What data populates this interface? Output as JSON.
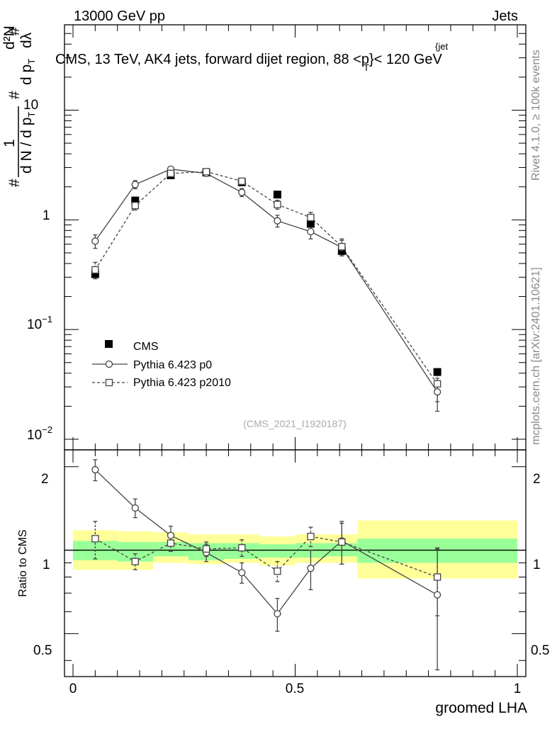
{
  "header": {
    "energy_label": "13000 GeV pp",
    "category_label": "Jets"
  },
  "title": {
    "main": "CMS, 13 TeV, AK4 jets, forward dijet region, 88 <p",
    "sup": "{jet",
    "sub": "T",
    "tail": "}< 120 GeV"
  },
  "side_labels": {
    "rivet": "Rivet 4.1.0, ≥ 100k events",
    "source": "mcplots.cern.ch [arXiv:2401.10621]"
  },
  "watermark": "(CMS_2021_I1920187)",
  "axes": {
    "xlabel": "groomed LHA",
    "ratio_ylabel": "Ratio to CMS",
    "main_ylabel": {
      "hash1": "#",
      "one": "1",
      "dN": "d N / d p",
      "T1": "T",
      "hash2": "#",
      "dpT": "d p",
      "T2": "T",
      "d2N": "d²N",
      "dlambda": "dλ",
      "hash3": "#"
    },
    "main_ticks": [
      {
        "value": 10,
        "label": "10"
      },
      {
        "value": 1,
        "label": "1"
      },
      {
        "value": 0.1,
        "label": "10"
      },
      {
        "value": 0.01,
        "label": "10"
      }
    ],
    "main_tick_exps": {
      "e_plus": "",
      "e_minus1": "−1",
      "e_minus2": "−2"
    },
    "ratio_ticks": [
      {
        "value": 2,
        "label": "2"
      },
      {
        "value": 1,
        "label": "1"
      },
      {
        "value": 0.5,
        "label": "0.5"
      }
    ],
    "x_ticks": [
      {
        "value": 0,
        "label": "0"
      },
      {
        "value": 0.5,
        "label": "0.5"
      },
      {
        "value": 1,
        "label": "1"
      }
    ]
  },
  "legend": [
    {
      "label": "CMS",
      "style": "filled-square"
    },
    {
      "label": "Pythia 6.423 p0",
      "style": "open-circle-solid"
    },
    {
      "label": "Pythia 6.423 p2010",
      "style": "open-square-dashed"
    }
  ],
  "chart_data": {
    "type": "scatter",
    "title": "CMS, 13 TeV, AK4 jets, forward dijet region, 88 < pT(jet) < 120 GeV",
    "xlabel": "groomed LHA",
    "ylabel": "1/N dN/dλ",
    "xlim": [
      -0.02,
      1.02
    ],
    "main_ylim": [
      0.008,
      60
    ],
    "main_yscale": "log",
    "ratio_ylim": [
      0.35,
      2.3
    ],
    "ratio_yscale": "log",
    "bins": [
      {
        "lo": 0.0,
        "hi": 0.1
      },
      {
        "lo": 0.1,
        "hi": 0.18
      },
      {
        "lo": 0.18,
        "hi": 0.26
      },
      {
        "lo": 0.26,
        "hi": 0.34
      },
      {
        "lo": 0.34,
        "hi": 0.42
      },
      {
        "lo": 0.42,
        "hi": 0.5
      },
      {
        "lo": 0.5,
        "hi": 0.57
      },
      {
        "lo": 0.57,
        "hi": 0.64
      },
      {
        "lo": 0.64,
        "hi": 1.0
      }
    ],
    "band_inner": [
      [
        0.92,
        1.08
      ],
      [
        0.91,
        1.07
      ],
      [
        0.95,
        1.07
      ],
      [
        0.92,
        1.06
      ],
      [
        0.93,
        1.06
      ],
      [
        0.94,
        1.05
      ],
      [
        0.94,
        1.06
      ],
      [
        0.95,
        1.06
      ],
      [
        0.9,
        1.1
      ]
    ],
    "band_outer": [
      [
        0.85,
        1.18
      ],
      [
        0.85,
        1.17
      ],
      [
        0.9,
        1.16
      ],
      [
        0.89,
        1.14
      ],
      [
        0.9,
        1.14
      ],
      [
        0.88,
        1.12
      ],
      [
        0.9,
        1.14
      ],
      [
        0.9,
        1.14
      ],
      [
        0.79,
        1.28
      ]
    ],
    "series": [
      {
        "name": "CMS",
        "x": [
          0.05,
          0.14,
          0.22,
          0.3,
          0.38,
          0.46,
          0.535,
          0.605,
          0.82
        ],
        "y": [
          0.32,
          1.5,
          2.55,
          2.7,
          2.2,
          1.7,
          0.92,
          0.52,
          0.041
        ]
      },
      {
        "name": "Pythia 6.423 p0",
        "x": [
          0.05,
          0.14,
          0.22,
          0.3,
          0.38,
          0.46,
          0.535,
          0.605,
          0.82
        ],
        "y": [
          0.64,
          2.1,
          2.9,
          2.65,
          1.78,
          0.98,
          0.78,
          0.56,
          0.027
        ],
        "yerr": [
          0.09,
          0.18,
          0.15,
          0.14,
          0.15,
          0.12,
          0.11,
          0.09,
          0.009
        ],
        "ratio": [
          1.95,
          1.42,
          1.13,
          0.98,
          0.83,
          0.59,
          0.86,
          1.08,
          0.69
        ],
        "ratio_err": [
          0.17,
          0.11,
          0.09,
          0.07,
          0.07,
          0.08,
          0.14,
          0.19,
          0.32
        ]
      },
      {
        "name": "Pythia 6.423 p2010",
        "x": [
          0.05,
          0.14,
          0.22,
          0.3,
          0.38,
          0.46,
          0.535,
          0.605,
          0.82
        ],
        "y": [
          0.35,
          1.35,
          2.65,
          2.75,
          2.25,
          1.38,
          1.05,
          0.57,
          0.032
        ],
        "yerr": [
          0.06,
          0.12,
          0.12,
          0.13,
          0.15,
          0.13,
          0.12,
          0.1,
          0.01
        ],
        "ratio": [
          1.1,
          0.91,
          1.06,
          1.01,
          1.02,
          0.84,
          1.12,
          1.07,
          0.8
        ],
        "ratio_err": [
          0.17,
          0.06,
          0.07,
          0.06,
          0.07,
          0.07,
          0.09,
          0.18,
          0.22
        ]
      }
    ]
  }
}
